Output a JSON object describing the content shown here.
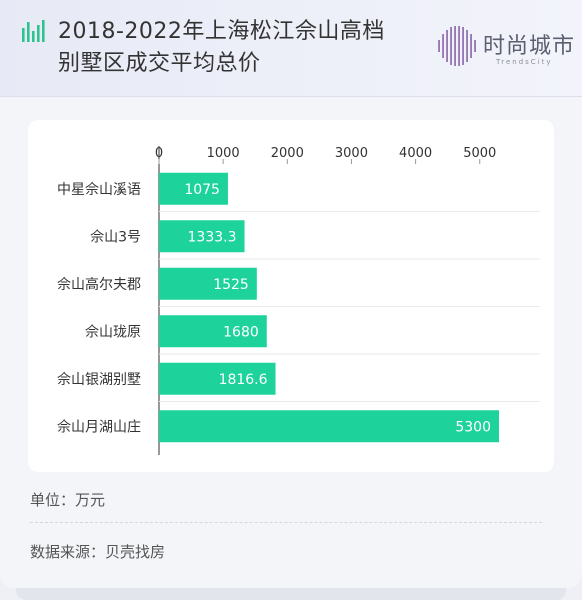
{
  "header": {
    "title_line1": "2018-2022年上海松江佘山高档",
    "title_line2": "别墅区成交平均总价",
    "logo_cn": "时尚城市",
    "logo_en": "TrendsCity"
  },
  "footer": {
    "unit_label": "单位",
    "unit_value": "万元",
    "source_label": "数据来源",
    "source_value": "贝壳找房"
  },
  "colors": {
    "bar": "#1dd39b",
    "accent": "#3ecf9a"
  },
  "chart_data": {
    "type": "bar",
    "orientation": "horizontal",
    "title": "2018-2022年上海松江佘山高档别墅区成交平均总价",
    "xlabel": "",
    "ylabel": "",
    "unit": "万元",
    "xlim": [
      0,
      5500
    ],
    "ticks": [
      0,
      1000,
      2000,
      3000,
      4000,
      5000
    ],
    "categories": [
      "中星佘山溪语",
      "佘山3号",
      "佘山高尔夫郡",
      "佘山珑原",
      "佘山银湖别墅",
      "佘山月湖山庄"
    ],
    "values": [
      1075,
      1333.3,
      1525,
      1680,
      1816.6,
      5300
    ],
    "value_labels": [
      "1075",
      "1333.3",
      "1525",
      "1680",
      "1816.6",
      "5300"
    ],
    "grid": "horizontal separators",
    "legend": "none"
  }
}
